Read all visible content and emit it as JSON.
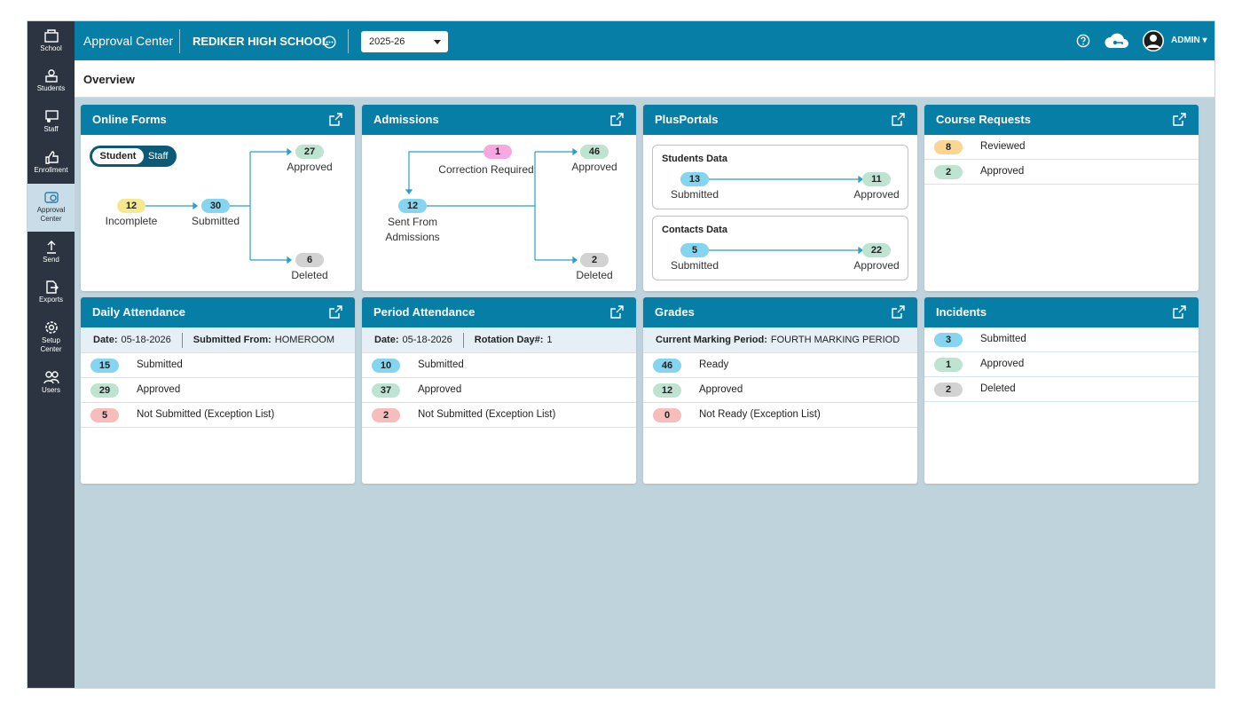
{
  "sidebar": [
    {
      "label": "School"
    },
    {
      "label": "Students"
    },
    {
      "label": "Staff"
    },
    {
      "label": "Enrollment"
    },
    {
      "label": "Approval Center"
    },
    {
      "label": "Send"
    },
    {
      "label": "Exports"
    },
    {
      "label": "Setup Center"
    },
    {
      "label": "Users"
    }
  ],
  "header": {
    "app": "Approval Center",
    "school": "REDIKER HIGH SCHOOL",
    "year": "2025-26",
    "user": "ADMIN"
  },
  "page_title": "Overview",
  "cards": {
    "online_forms": {
      "title": "Online Forms",
      "toggle": [
        "Student",
        "Staff"
      ],
      "incomplete": {
        "value": 12,
        "label": "Incomplete"
      },
      "submitted": {
        "value": 30,
        "label": "Submitted"
      },
      "approved": {
        "value": 27,
        "label": "Approved"
      },
      "deleted": {
        "value": 6,
        "label": "Deleted"
      }
    },
    "admissions": {
      "title": "Admissions",
      "correction": {
        "value": 1,
        "label": "Correction Required"
      },
      "sent": {
        "value": 12,
        "label": "Sent From Admissions"
      },
      "approved": {
        "value": 46,
        "label": "Approved"
      },
      "deleted": {
        "value": 2,
        "label": "Deleted"
      }
    },
    "plusportals": {
      "title": "PlusPortals",
      "groups": [
        {
          "title": "Students Data",
          "from": {
            "value": 13,
            "label": "Submitted"
          },
          "to": {
            "value": 11,
            "label": "Approved"
          }
        },
        {
          "title": "Contacts Data",
          "from": {
            "value": 5,
            "label": "Submitted"
          },
          "to": {
            "value": 22,
            "label": "Approved"
          }
        }
      ]
    },
    "course_requests": {
      "title": "Course Requests",
      "rows": [
        {
          "value": 8,
          "label": "Reviewed"
        },
        {
          "value": 2,
          "label": "Approved"
        }
      ]
    },
    "daily_attendance": {
      "title": "Daily Attendance",
      "meta": [
        {
          "label": "Date:",
          "value": "05-18-2026"
        },
        {
          "label": "Submitted From:",
          "value": "HOMEROOM"
        }
      ],
      "rows": [
        {
          "value": 15,
          "label": "Submitted"
        },
        {
          "value": 29,
          "label": "Approved"
        },
        {
          "value": 5,
          "label": "Not Submitted (Exception List)"
        }
      ]
    },
    "period_attendance": {
      "title": "Period Attendance",
      "meta": [
        {
          "label": "Date:",
          "value": "05-18-2026"
        },
        {
          "label": "Rotation Day#:",
          "value": "1"
        }
      ],
      "rows": [
        {
          "value": 10,
          "label": "Submitted"
        },
        {
          "value": 37,
          "label": "Approved"
        },
        {
          "value": 2,
          "label": "Not Submitted (Exception List)"
        }
      ]
    },
    "grades": {
      "title": "Grades",
      "meta": [
        {
          "label": "Current Marking Period:",
          "value": "FOURTH MARKING PERIOD"
        }
      ],
      "rows": [
        {
          "value": 46,
          "label": "Ready"
        },
        {
          "value": 12,
          "label": "Approved"
        },
        {
          "value": 0,
          "label": "Not Ready (Exception List)"
        }
      ]
    },
    "incidents": {
      "title": "Incidents",
      "rows": [
        {
          "value": 3,
          "label": "Submitted"
        },
        {
          "value": 1,
          "label": "Approved"
        },
        {
          "value": 2,
          "label": "Deleted"
        }
      ]
    }
  }
}
